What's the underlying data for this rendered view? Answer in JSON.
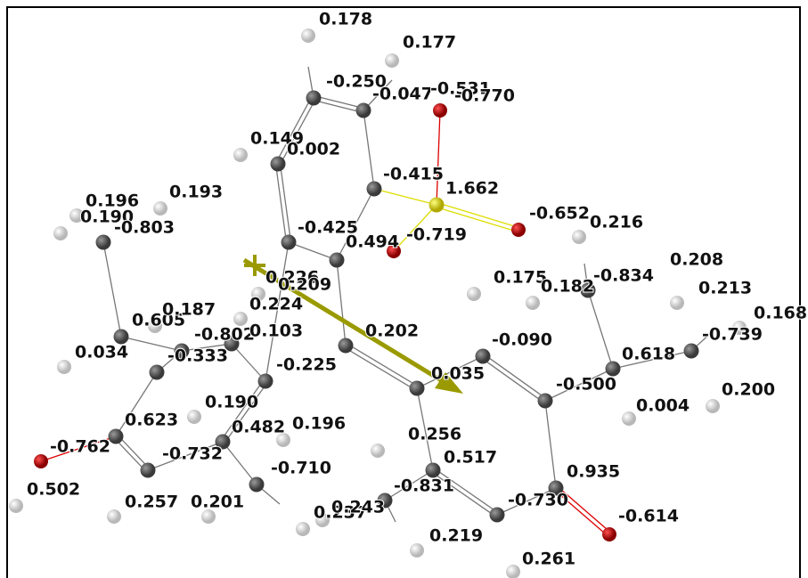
{
  "atom_labels": [
    "0.178",
    "0.177",
    "-0.250",
    "-0.047",
    "-0.531",
    "-0.770",
    "0.149",
    "0.002",
    "-0.415",
    "1.662",
    "0.196",
    "0.193",
    "0.190",
    "-0.803",
    "-0.652",
    "0.216",
    "-0.425",
    "0.494",
    "-0.719",
    "0.208",
    "0.226",
    "0.209",
    "0.175",
    "0.182",
    "-0.834",
    "0.213",
    "0.224",
    "0.168",
    "0.605",
    "0.187",
    "-0.802",
    "0.103",
    "0.202",
    "-0.739",
    "-0.090",
    "0.034",
    "-0.333",
    "0.618",
    "-0.225",
    "0.035",
    "-0.500",
    "0.200",
    "0.190",
    "0.004",
    "0.482",
    "0.196",
    "0.623",
    "0.256",
    "-0.762",
    "-0.732",
    "0.517",
    "0.935",
    "-0.710",
    "-0.831",
    "0.502",
    "-0.730",
    "0.257",
    "0.201",
    "0.237",
    "0.243",
    "-0.614",
    "0.219",
    "0.261"
  ]
}
